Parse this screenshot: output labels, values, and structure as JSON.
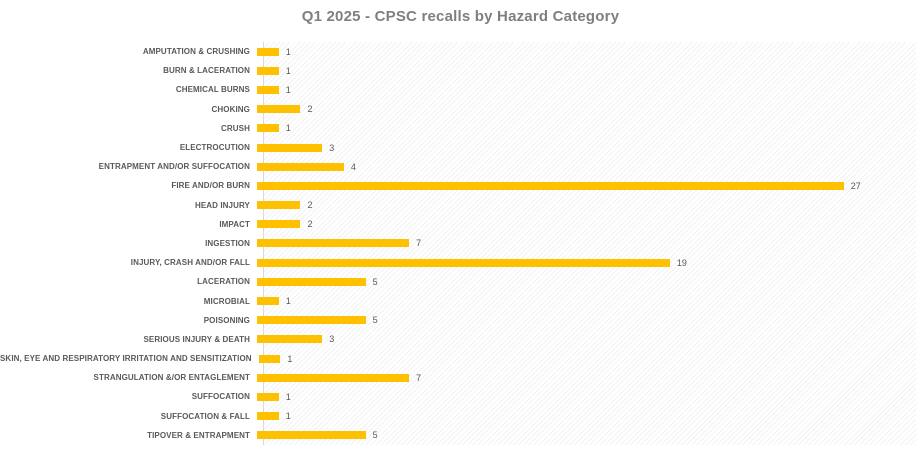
{
  "chart_data": {
    "type": "bar",
    "orientation": "horizontal",
    "title": "Q1 2025 - CPSC recalls by Hazard Category",
    "xlabel": "",
    "ylabel": "",
    "xlim": [
      0,
      30
    ],
    "grid": false,
    "legend": false,
    "data_labels": true,
    "plot_background": "diagonal-hatch",
    "bar_color": "#FFC000",
    "title_color": "#7F7F7F",
    "category_label_color": "#595959",
    "value_label_color": "#595959",
    "categories": [
      "AMPUTATION & CRUSHING",
      "BURN & LACERATION",
      "CHEMICAL BURNS",
      "CHOKING",
      "CRUSH",
      "ELECTROCUTION",
      "ENTRAPMENT AND/OR SUFFOCATION",
      "FIRE AND/OR BURN",
      "HEAD INJURY",
      "IMPACT",
      "INGESTION",
      "INJURY, CRASH AND/OR FALL",
      "LACERATION",
      "MICROBIAL",
      "POISONING",
      "SERIOUS INJURY & DEATH",
      "SKIN, EYE AND RESPIRATORY IRRITATION AND SENSITIZATION",
      "STRANGULATION &/OR ENTAGLEMENT",
      "SUFFOCATION",
      "SUFFOCATION & FALL",
      "TIPOVER & ENTRAPMENT"
    ],
    "values": [
      1,
      1,
      1,
      2,
      1,
      3,
      4,
      27,
      2,
      2,
      7,
      19,
      5,
      1,
      5,
      3,
      1,
      7,
      1,
      1,
      5
    ]
  }
}
